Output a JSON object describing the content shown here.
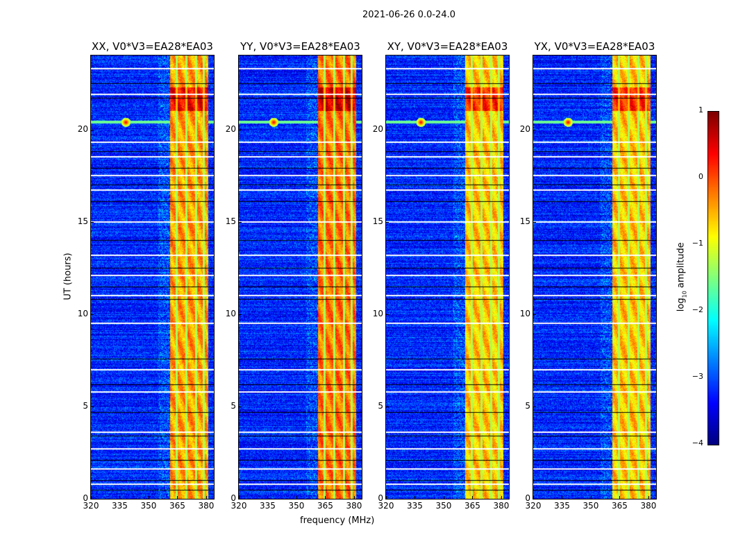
{
  "chart_data": {
    "type": "heatmap",
    "title": "2021-06-26 0.0-24.0",
    "xlabel": "frequency (MHz)",
    "ylabel": "UT (hours)",
    "xlim": [
      320,
      384
    ],
    "ylim": [
      0,
      24
    ],
    "xticks": [
      "320",
      "335",
      "350",
      "365",
      "380"
    ],
    "xtick_values": [
      320,
      335,
      350,
      365,
      380
    ],
    "yticks": [
      "0",
      "5",
      "10",
      "15",
      "20"
    ],
    "ytick_values": [
      0,
      5,
      10,
      15,
      20
    ],
    "colormap": "jet",
    "colorbar": {
      "label": "log10 amplitude",
      "label_main": "log",
      "label_sub": "10",
      "label_rest": " amplitude",
      "range": [
        -4,
        1
      ],
      "ticks": [
        "1",
        "0",
        "−1",
        "−2",
        "−3",
        "−4"
      ],
      "tick_values": [
        1,
        0,
        -1,
        -2,
        -3,
        -4
      ]
    },
    "panels": [
      {
        "title": "XX, V0*V3=EA28*EA03",
        "band_level": -0.4
      },
      {
        "title": "YY, V0*V3=EA28*EA03",
        "band_level": -0.2
      },
      {
        "title": "XY, V0*V3=EA28*EA03",
        "band_level": -0.6
      },
      {
        "title": "YX, V0*V3=EA28*EA03",
        "band_level": -0.6
      }
    ],
    "features": {
      "background_level": -3.2,
      "rfi_band_mhz": [
        361,
        381
      ],
      "band_gaps_mhz": [
        364.5,
        369.5,
        374.5,
        378.5
      ],
      "strong_rfi_hours": [
        21.0,
        22.3
      ],
      "point_source": {
        "freq_mhz": 338,
        "hour": 20.4,
        "level": 0.5
      },
      "flagged_hours": [
        23.3,
        22.5,
        21.9,
        21.7,
        19.3,
        18.8,
        18.5,
        17.9,
        17.5,
        17.0,
        16.7,
        16.1,
        15.0,
        14.0,
        13.2,
        12.5,
        12.1,
        11.5,
        11.0,
        10.8,
        9.5,
        7.6,
        7.0,
        6.2,
        5.8,
        4.7,
        3.6,
        3.4,
        2.7,
        2.1,
        1.6,
        1.0,
        0.8,
        0.5
      ]
    }
  }
}
